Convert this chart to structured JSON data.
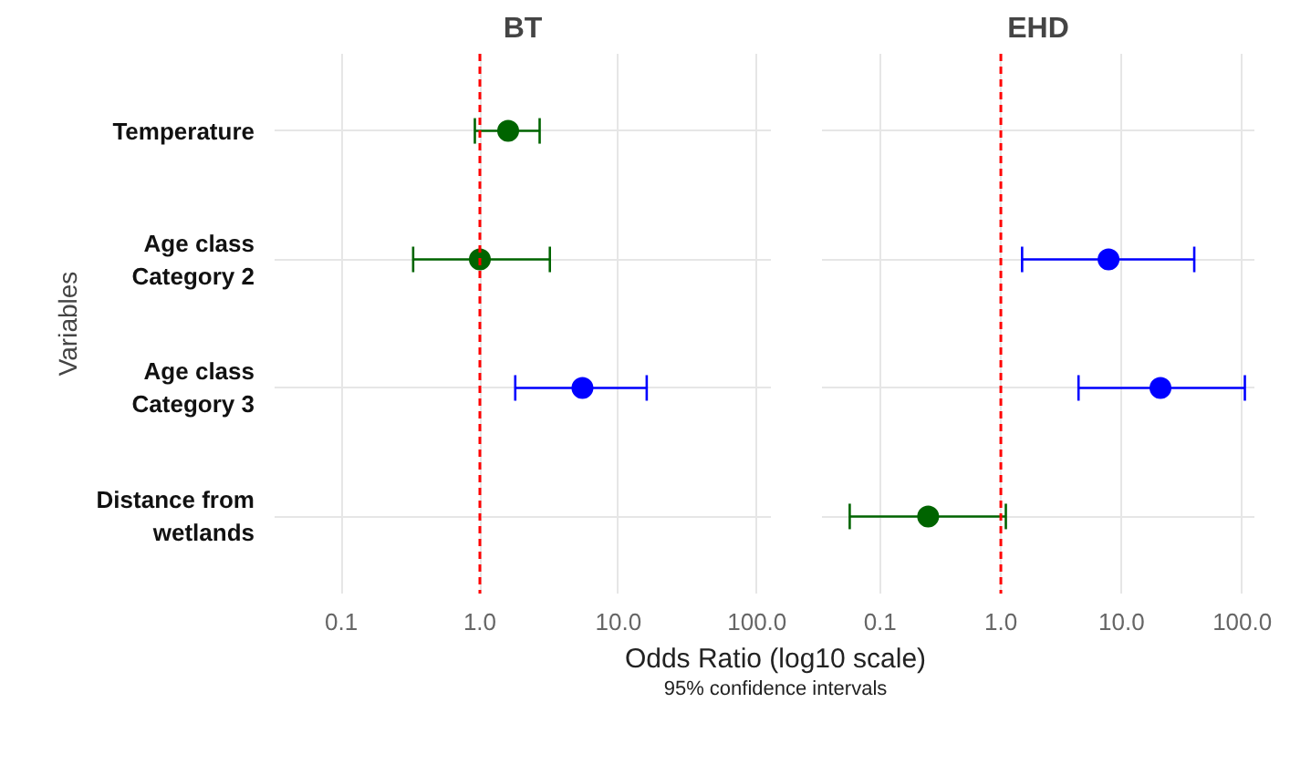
{
  "chart_data": [
    {
      "type": "scatter",
      "orientation": "horizontal",
      "title": "BT",
      "ylabel": "Variables",
      "xlabel": "Odds Ratio (log10 scale)",
      "annotations": [
        "95% confidence intervals"
      ],
      "categories": [
        "Temperature",
        "Age class\nCategory 2",
        "Age class\nCategory 3",
        "Distance from\nwetlands"
      ],
      "values": [
        1.6,
        1.0,
        5.5,
        null
      ],
      "errors": [
        [
          0.92,
          2.7
        ],
        [
          0.33,
          3.2
        ],
        [
          1.8,
          16
        ],
        null
      ],
      "colors": [
        "#006400",
        "#006400",
        "#0000ff",
        null
      ],
      "log": "x",
      "xlim": [
        0.033,
        126
      ],
      "xticks": [
        0.1,
        {
          "value": 1,
          "label": "1.0"
        },
        {
          "value": 10,
          "label": "10.0"
        },
        {
          "value": 100,
          "label": "100.0"
        }
      ],
      "ref_lines": [
        {
          "axis": "x",
          "value": 1,
          "color": "#ff0000",
          "line_style": "dashed"
        }
      ],
      "grid": true,
      "marker": "circle"
    },
    {
      "type": "scatter",
      "orientation": "horizontal",
      "title": "EHD",
      "categories": [
        null,
        null,
        null,
        null
      ],
      "values": [
        null,
        7.8,
        21,
        0.25
      ],
      "errors": [
        null,
        [
          1.5,
          40
        ],
        [
          4.4,
          105
        ],
        [
          0.056,
          1.1
        ]
      ],
      "colors": [
        null,
        "#0000ff",
        "#0000ff",
        "#006400"
      ],
      "log": "x",
      "xlim": [
        0.033,
        126
      ],
      "xticks": [
        0.1,
        {
          "value": 1,
          "label": "1.0"
        },
        {
          "value": 10,
          "label": "10.0"
        },
        {
          "value": 100,
          "label": "100.0"
        }
      ],
      "ref_lines": [
        {
          "axis": "x",
          "value": 1,
          "color": "#ff0000",
          "line_style": "dashed"
        }
      ],
      "grid": true,
      "marker": "circle",
      "tick_labels": "x"
    }
  ]
}
